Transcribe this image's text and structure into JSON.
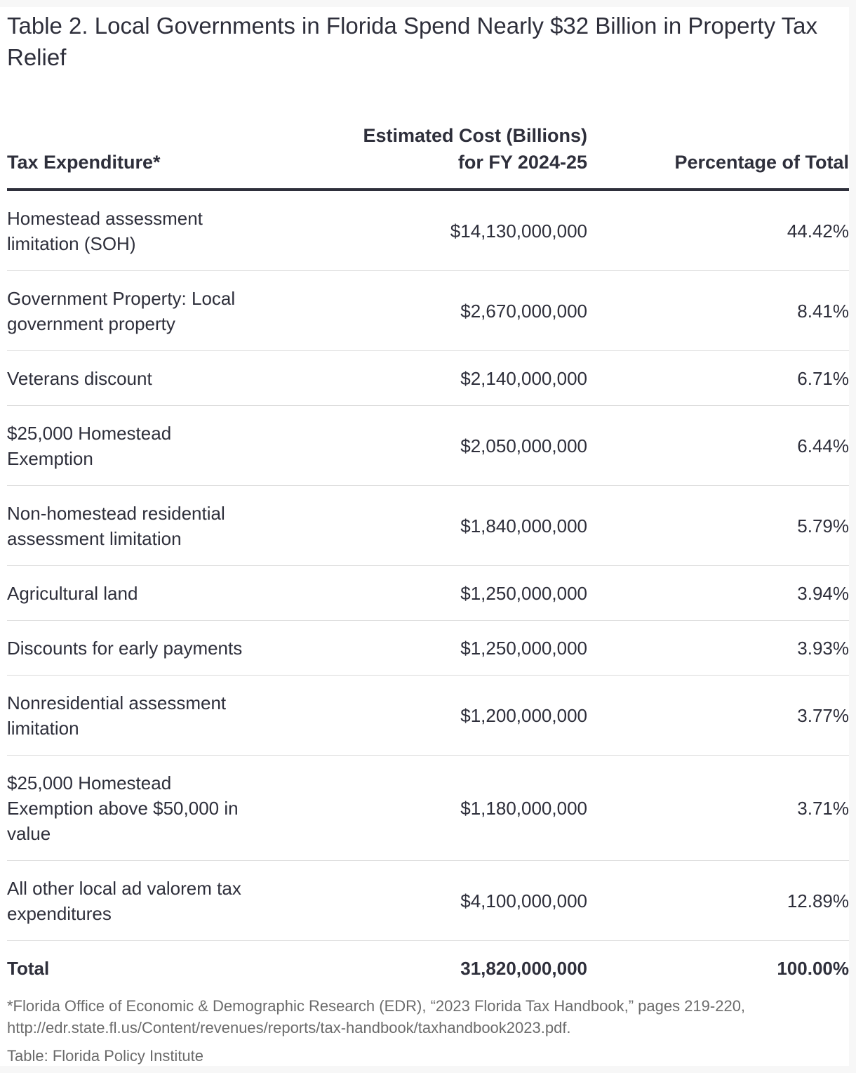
{
  "chart_data": {
    "type": "table",
    "title": "Table 2. Local Governments in Florida Spend Nearly $32 Billion in Property Tax Relief",
    "columns": [
      "Tax Expenditure*",
      "Estimated Cost (Billions) for FY 2024-25",
      "Percentage of Total"
    ],
    "rows": [
      {
        "expenditure": "Homestead assessment limitation (SOH)",
        "cost": "$14,130,000,000",
        "percent": "44.42%"
      },
      {
        "expenditure": "Government Property: Local government property",
        "cost": "$2,670,000,000",
        "percent": "8.41%"
      },
      {
        "expenditure": "Veterans discount",
        "cost": "$2,140,000,000",
        "percent": "6.71%"
      },
      {
        "expenditure": "$25,000 Homestead Exemption",
        "cost": "$2,050,000,000",
        "percent": "6.44%"
      },
      {
        "expenditure": "Non-homestead residential assessment limitation",
        "cost": "$1,840,000,000",
        "percent": "5.79%"
      },
      {
        "expenditure": "Agricultural land",
        "cost": "$1,250,000,000",
        "percent": "3.94%"
      },
      {
        "expenditure": "Discounts for early payments",
        "cost": "$1,250,000,000",
        "percent": "3.93%"
      },
      {
        "expenditure": "Nonresidential assessment limitation",
        "cost": "$1,200,000,000",
        "percent": "3.77%"
      },
      {
        "expenditure": "$25,000 Homestead Exemption above $50,000 in value",
        "cost": "$1,180,000,000",
        "percent": "3.71%"
      },
      {
        "expenditure": "All other local ad valorem tax expenditures",
        "cost": "$4,100,000,000",
        "percent": "12.89%"
      }
    ],
    "total": {
      "label": "Total",
      "cost": "31,820,000,000",
      "percent": "100.00%"
    },
    "footnote": "*Florida Office of Economic & Demographic Research (EDR), “2023 Florida Tax Handbook,” pages 219-220, http://edr.state.fl.us/Content/revenues/reports/tax-handbook/taxhandbook2023.pdf.",
    "source": "Table: Florida Policy Institute"
  }
}
